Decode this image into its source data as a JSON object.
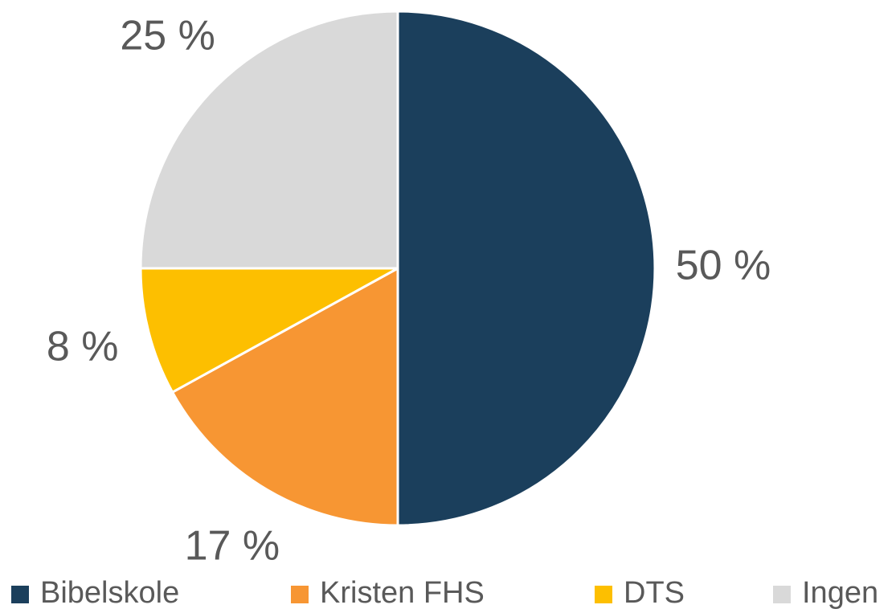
{
  "chart_data": {
    "type": "pie",
    "categories": [
      "Bibelskole",
      "Kristen FHS",
      "DTS",
      "Ingen"
    ],
    "values": [
      50,
      17,
      8,
      25
    ],
    "value_labels": [
      "50 %",
      "17 %",
      "8 %",
      "25 %"
    ],
    "colors": [
      "#1b3f5c",
      "#f79633",
      "#fdbf00",
      "#d9d9d9"
    ],
    "legend": "bottom"
  }
}
